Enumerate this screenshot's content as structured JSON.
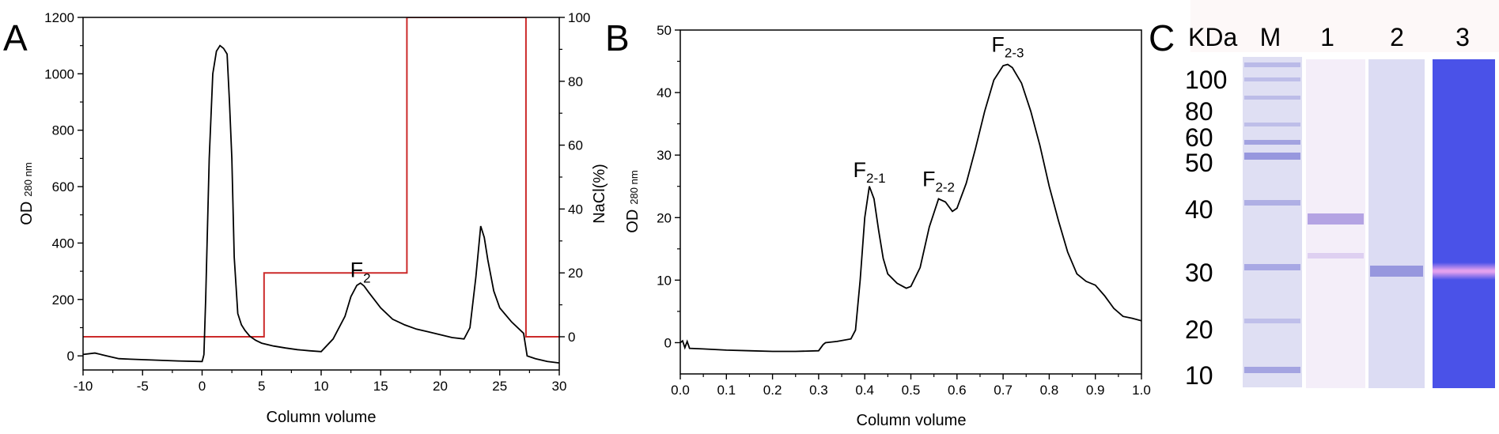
{
  "chart_data": [
    {
      "panel_label": "A",
      "type": "line",
      "xlabel": "Column volume",
      "ylabel_main": "OD",
      "ylabel_sub": "280 nm",
      "y2label": "NaCl(%)",
      "xlim": [
        -10,
        30
      ],
      "ylim": [
        -50,
        1200
      ],
      "y2lim": [
        -10.4,
        100
      ],
      "xticks": [
        -10,
        -5,
        0,
        5,
        10,
        15,
        20,
        25,
        30
      ],
      "yticks": [
        0,
        200,
        400,
        600,
        800,
        1000,
        1200
      ],
      "y2ticks": [
        0,
        20,
        40,
        60,
        80,
        100
      ],
      "grid": false,
      "series": [
        {
          "axis": "left",
          "color": "#000000",
          "x": [
            -10,
            -9,
            -8,
            -7,
            -6,
            -4,
            -2,
            0,
            0.1,
            0.15,
            0.3,
            0.6,
            0.9,
            1.2,
            1.5,
            1.8,
            2.1,
            2.3,
            2.5,
            2.7,
            3.0,
            3.3,
            3.6,
            4.0,
            4.5,
            5.0,
            6,
            7,
            8,
            9,
            10,
            11,
            12,
            12.5,
            13,
            13.3,
            13.6,
            14,
            15,
            16,
            17,
            18,
            19,
            20,
            21,
            22,
            22.5,
            23,
            23.4,
            23.7,
            24,
            24.5,
            25,
            26,
            27,
            27.3,
            28,
            29,
            30
          ],
          "y": [
            5,
            10,
            0,
            -10,
            -12,
            -15,
            -18,
            -20,
            -5,
            5,
            200,
            700,
            1000,
            1080,
            1100,
            1090,
            1070,
            900,
            700,
            350,
            150,
            110,
            90,
            70,
            55,
            45,
            35,
            28,
            22,
            18,
            15,
            60,
            140,
            210,
            250,
            258,
            248,
            225,
            170,
            130,
            110,
            95,
            85,
            75,
            65,
            60,
            100,
            280,
            460,
            420,
            340,
            230,
            170,
            120,
            80,
            0,
            -10,
            -20,
            -25
          ]
        },
        {
          "axis": "right",
          "color": "#cc2a2a",
          "x": [
            -10,
            5.2,
            5.2,
            17.2,
            17.2,
            27.2,
            27.2,
            30
          ],
          "y": [
            0,
            0,
            20,
            20,
            100,
            100,
            0,
            0
          ]
        }
      ],
      "annotations": [
        {
          "text": "F",
          "sub": "2",
          "x": 13.3,
          "y": 280
        }
      ]
    },
    {
      "panel_label": "B",
      "type": "line",
      "xlabel": "Column volume",
      "ylabel_main": "OD",
      "ylabel_sub": "280 nm",
      "xlim": [
        0.0,
        1.0
      ],
      "ylim": [
        -5,
        50
      ],
      "xticks": [
        "0.0",
        "0.1",
        "0.2",
        "0.3",
        "0.4",
        "0.5",
        "0.6",
        "0.7",
        "0.8",
        "0.9",
        "1.0"
      ],
      "yticks": [
        0,
        10,
        20,
        30,
        40,
        50
      ],
      "grid": false,
      "series": [
        {
          "color": "#000000",
          "x": [
            0.0,
            0.005,
            0.01,
            0.015,
            0.02,
            0.05,
            0.1,
            0.15,
            0.2,
            0.25,
            0.3,
            0.31,
            0.315,
            0.34,
            0.37,
            0.38,
            0.39,
            0.4,
            0.41,
            0.42,
            0.43,
            0.44,
            0.45,
            0.47,
            0.49,
            0.5,
            0.52,
            0.54,
            0.56,
            0.575,
            0.59,
            0.6,
            0.62,
            0.64,
            0.66,
            0.68,
            0.7,
            0.71,
            0.72,
            0.74,
            0.76,
            0.78,
            0.8,
            0.82,
            0.84,
            0.86,
            0.88,
            0.9,
            0.92,
            0.94,
            0.96,
            0.98,
            1.0
          ],
          "y": [
            0.0,
            0.3,
            -0.8,
            0.2,
            -0.9,
            -1.0,
            -1.2,
            -1.3,
            -1.4,
            -1.4,
            -1.3,
            -0.3,
            0.0,
            0.2,
            0.6,
            2.0,
            10.0,
            20.0,
            25.0,
            23.0,
            18.0,
            13.5,
            11.0,
            9.5,
            8.7,
            9.0,
            12.0,
            18.5,
            23.0,
            22.5,
            21.0,
            21.5,
            25.5,
            31.0,
            37.0,
            42.0,
            44.3,
            44.5,
            44.0,
            41.5,
            37.0,
            31.5,
            25.0,
            19.5,
            14.5,
            11.0,
            9.8,
            9.2,
            7.5,
            5.5,
            4.2,
            3.9,
            3.5
          ]
        }
      ],
      "annotations": [
        {
          "text": "F",
          "sub": "2-1",
          "x": 0.41,
          "y": 26.5
        },
        {
          "text": "F",
          "sub": "2-2",
          "x": 0.56,
          "y": 25.0
        },
        {
          "text": "F",
          "sub": "2-3",
          "x": 0.71,
          "y": 46.5
        }
      ]
    },
    {
      "panel_label": "C",
      "type": "gel",
      "unit_label": "KDa",
      "marker_values": [
        "100",
        "80",
        "60",
        "50",
        "40",
        "30",
        "20",
        "10"
      ],
      "lane_labels": [
        "M",
        "1",
        "2",
        "3"
      ],
      "colors": {
        "lane_stain": "#d2d3ef",
        "band": "#8f8fdb",
        "zymogram_bg": "#4a52e8",
        "zymogram_band": "#e3a1ee"
      }
    }
  ]
}
